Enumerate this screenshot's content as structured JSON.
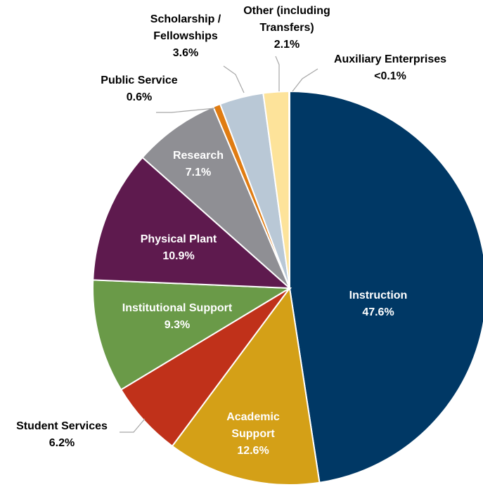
{
  "chart_data": {
    "type": "pie",
    "start_angle_deg": 0,
    "direction": "clockwise",
    "slices": [
      {
        "label_lines": [
          "Instruction"
        ],
        "value_label": "47.6%",
        "value": 47.6,
        "color": "#003865",
        "label_inside": true
      },
      {
        "label_lines": [
          "Academic",
          "Support"
        ],
        "value_label": "12.6%",
        "value": 12.6,
        "color": "#d4a017",
        "label_inside": true
      },
      {
        "label_lines": [
          "Student Services"
        ],
        "value_label": "6.2%",
        "value": 6.2,
        "color": "#c0311a",
        "label_inside": false
      },
      {
        "label_lines": [
          "Institutional Support"
        ],
        "value_label": "9.3%",
        "value": 9.3,
        "color": "#6a9a48",
        "label_inside": true
      },
      {
        "label_lines": [
          "Physical Plant"
        ],
        "value_label": "10.9%",
        "value": 10.9,
        "color": "#5e1a4e",
        "label_inside": true
      },
      {
        "label_lines": [
          "Research"
        ],
        "value_label": "7.1%",
        "value": 7.1,
        "color": "#8f8f94",
        "label_inside": true
      },
      {
        "label_lines": [
          "Public Service"
        ],
        "value_label": "0.6%",
        "value": 0.6,
        "color": "#e07c12",
        "label_inside": false
      },
      {
        "label_lines": [
          "Scholarship /",
          "Fellowships"
        ],
        "value_label": "3.6%",
        "value": 3.6,
        "color": "#b9c8d6",
        "label_inside": false
      },
      {
        "label_lines": [
          "Other (including",
          "Transfers)"
        ],
        "value_label": "2.1%",
        "value": 2.1,
        "color": "#fde39a",
        "label_inside": false
      },
      {
        "label_lines": [
          "Auxiliary Enterprises"
        ],
        "value_label": "<0.1%",
        "value": 0.05,
        "color": "#ffffff",
        "label_inside": false
      }
    ]
  }
}
